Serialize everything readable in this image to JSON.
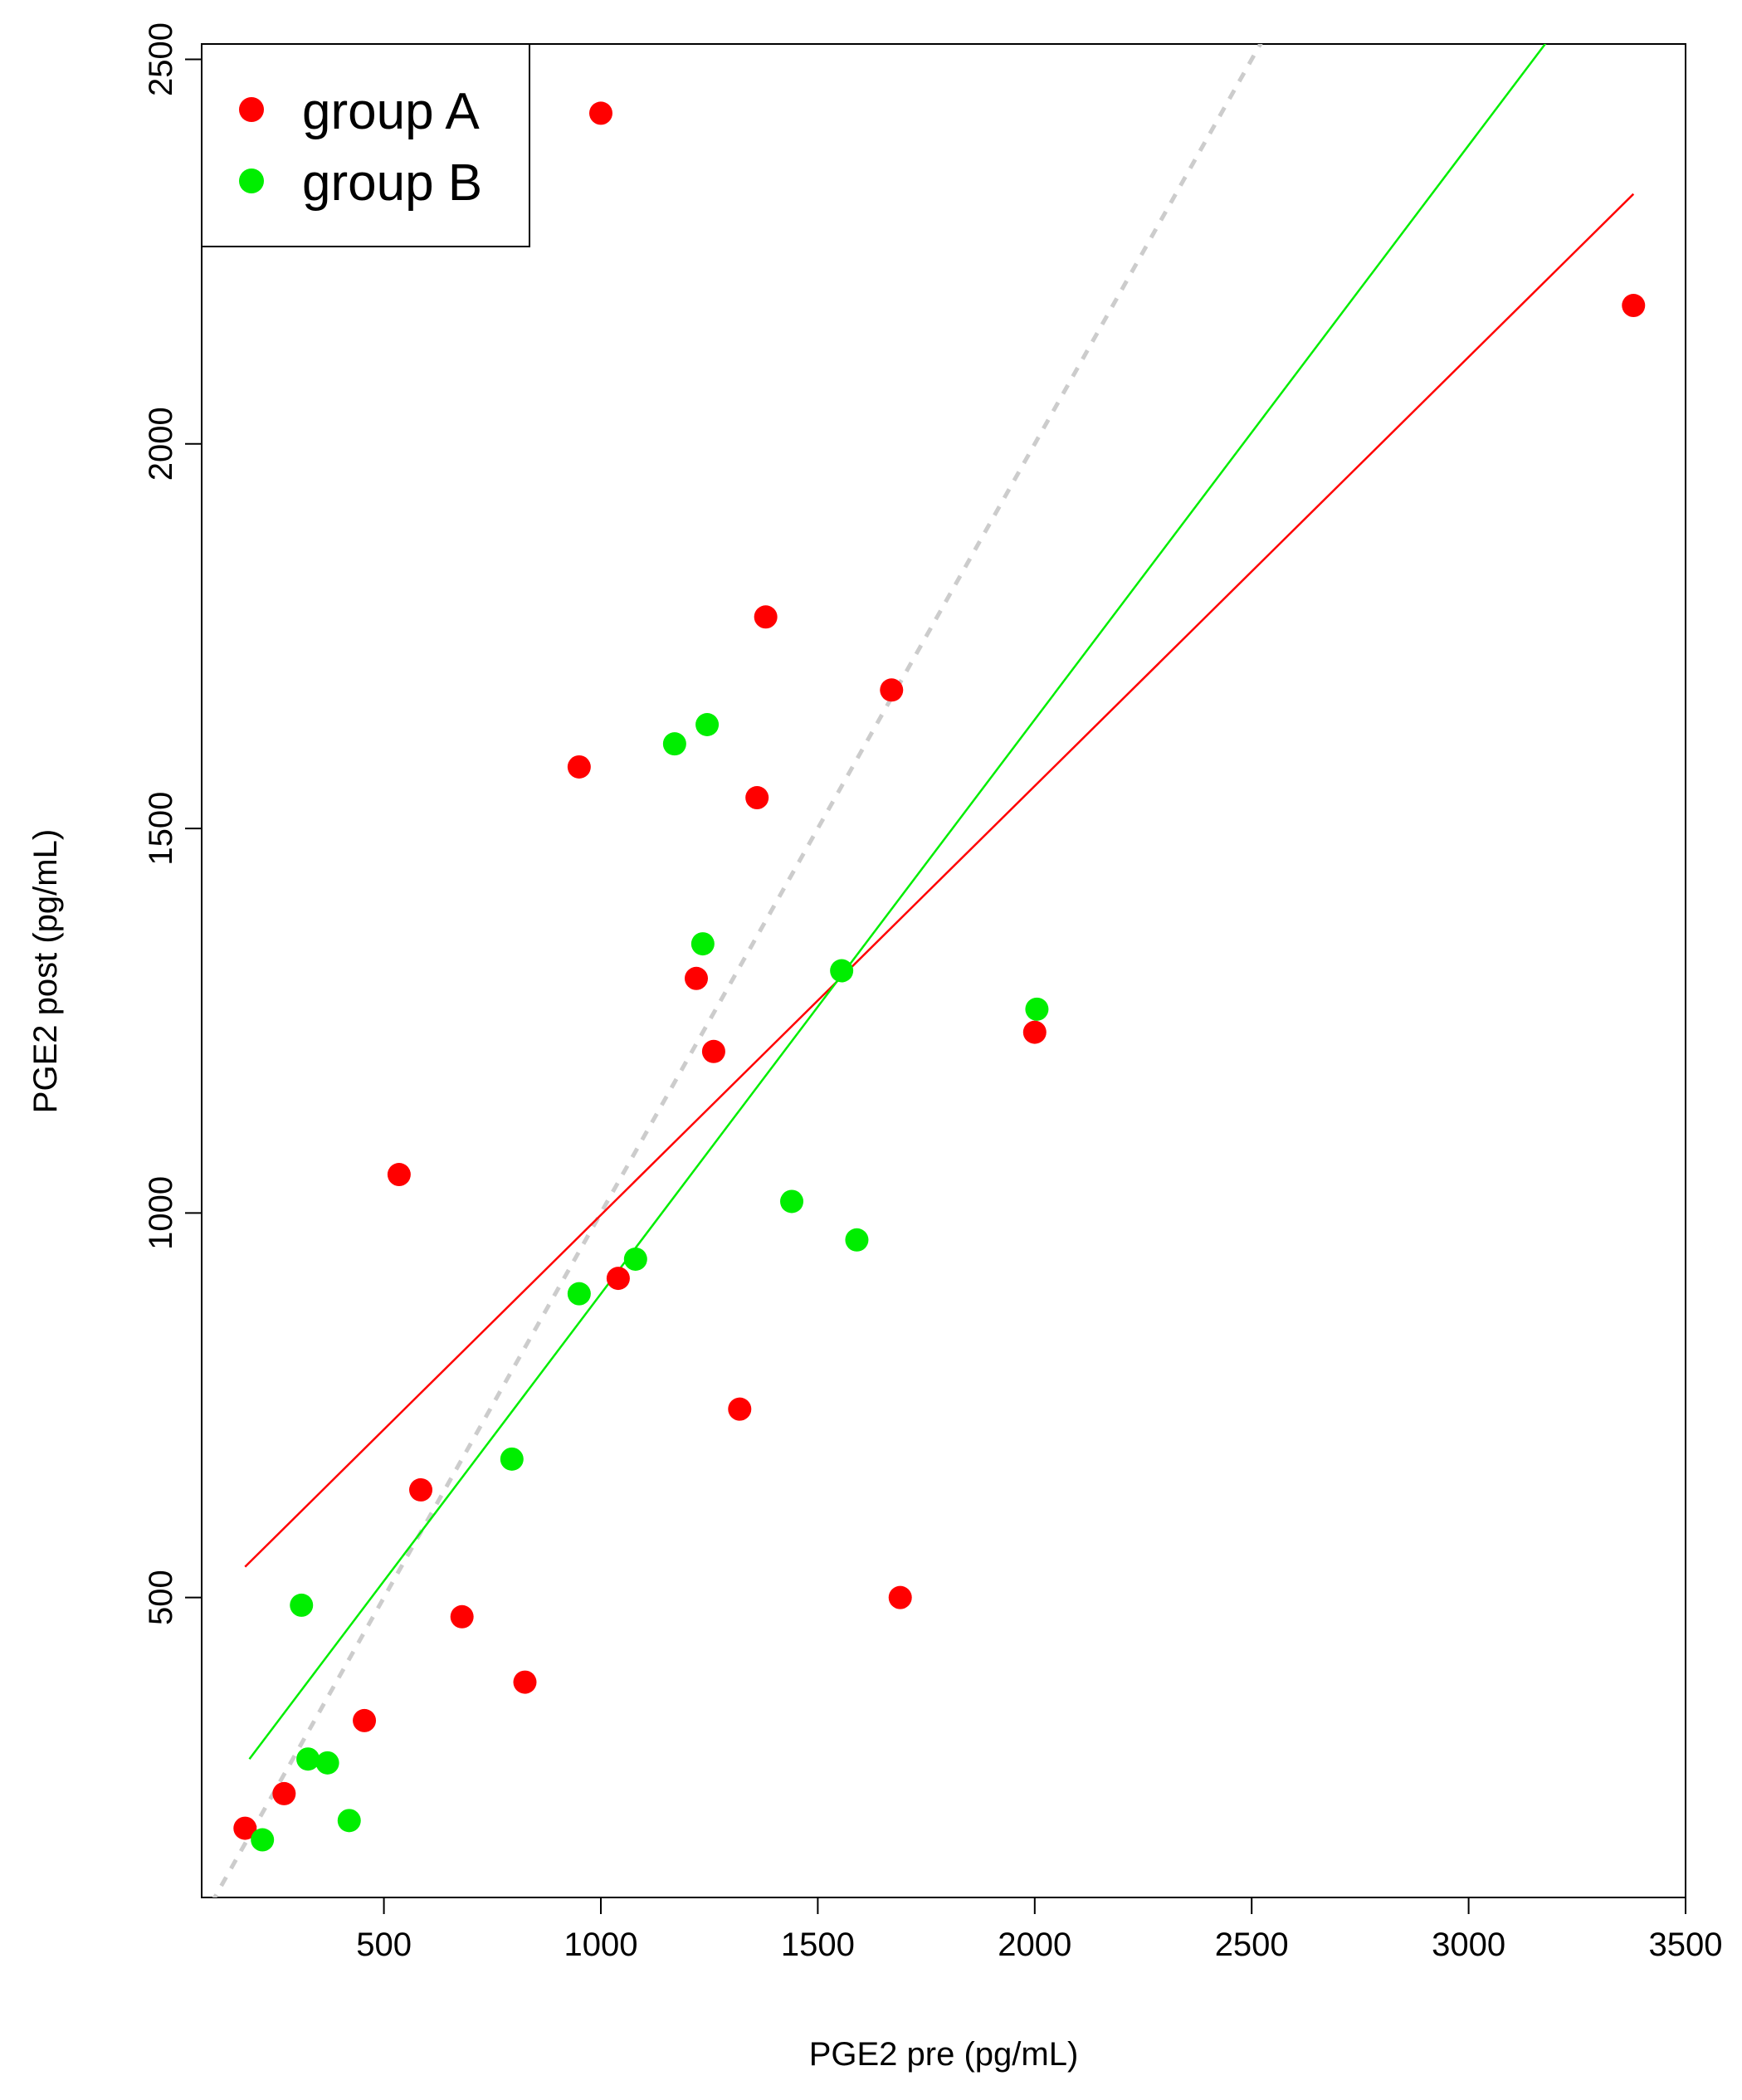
{
  "chart_data": {
    "type": "scatter",
    "xlabel": "PGE2 pre (pg/mL)",
    "ylabel": "PGE2 post (pg/mL)",
    "xlim": [
      80,
      3500
    ],
    "ylim": [
      110,
      2520
    ],
    "x_ticks": [
      500,
      1000,
      1500,
      2000,
      2500,
      3000,
      3500
    ],
    "y_ticks": [
      500,
      1000,
      1500,
      2000,
      2500
    ],
    "grid": false,
    "legend_position": "top-left",
    "series": [
      {
        "name": "group A",
        "color": "#ff0000",
        "points": [
          [
            1000,
            2430
          ],
          [
            3380,
            2180
          ],
          [
            1380,
            1775
          ],
          [
            1670,
            1680
          ],
          [
            950,
            1580
          ],
          [
            1360,
            1540
          ],
          [
            1220,
            1305
          ],
          [
            1260,
            1210
          ],
          [
            2000,
            1235
          ],
          [
            535,
            1050
          ],
          [
            1040,
            915
          ],
          [
            1320,
            745
          ],
          [
            585,
            640
          ],
          [
            680,
            475
          ],
          [
            1690,
            500
          ],
          [
            825,
            390
          ],
          [
            455,
            340
          ],
          [
            270,
            245
          ],
          [
            180,
            200
          ]
        ],
        "fit_line": {
          "x": [
            180,
            3380
          ],
          "y": [
            540,
            2325
          ]
        }
      },
      {
        "name": "group B",
        "color": "#00ee00",
        "points": [
          [
            1170,
            1610
          ],
          [
            1245,
            1635
          ],
          [
            1235,
            1350
          ],
          [
            1555,
            1315
          ],
          [
            2005,
            1265
          ],
          [
            1440,
            1015
          ],
          [
            1590,
            965
          ],
          [
            1080,
            940
          ],
          [
            950,
            895
          ],
          [
            795,
            680
          ],
          [
            310,
            490
          ],
          [
            325,
            290
          ],
          [
            370,
            285
          ],
          [
            420,
            210
          ],
          [
            220,
            185
          ]
        ],
        "fit_line": {
          "x": [
            190,
            3230
          ],
          "y": [
            290,
            2560
          ]
        }
      }
    ],
    "reference_line": {
      "style": "dashed",
      "color": "#cccccc",
      "slope": 1,
      "intercept": 0
    }
  }
}
